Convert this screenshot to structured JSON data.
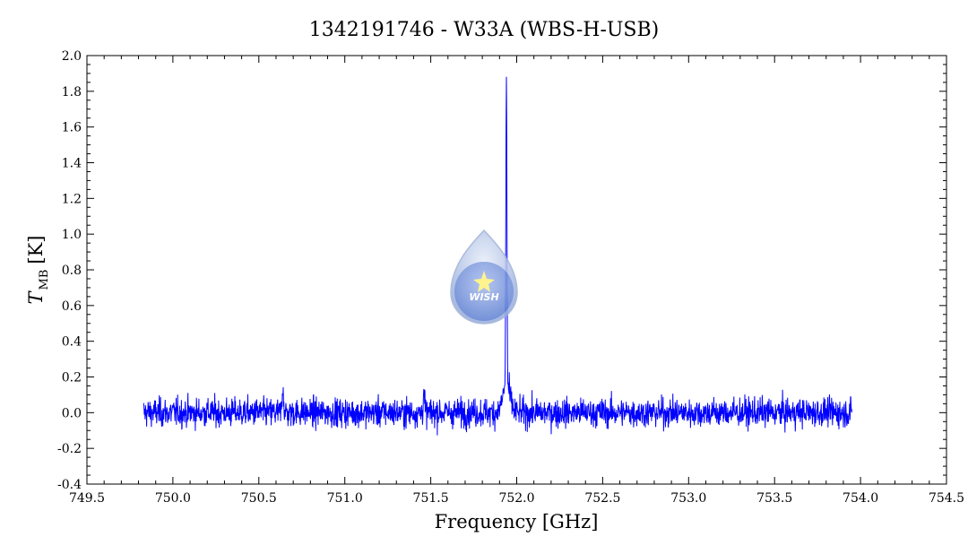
{
  "chart_data": {
    "type": "line",
    "title": "1342191746 - W33A (WBS-H-USB)",
    "xlabel": "Frequency [GHz]",
    "ylabel_main": "T",
    "ylabel_sub": "MB",
    "ylabel_unit": "[K]",
    "xlim": [
      749.5,
      754.5
    ],
    "ylim": [
      -0.4,
      2.0
    ],
    "xticks": [
      "749.5",
      "750.0",
      "750.5",
      "751.0",
      "751.5",
      "752.0",
      "752.5",
      "753.0",
      "753.5",
      "754.0",
      "754.5"
    ],
    "yticks": [
      "-0.4",
      "-0.2",
      "0.0",
      "0.2",
      "0.4",
      "0.6",
      "0.8",
      "1.0",
      "1.2",
      "1.4",
      "1.6",
      "1.8",
      "2.0"
    ],
    "grid": false,
    "series": [
      {
        "color": "#0000ff",
        "x_start": 749.83,
        "x_end": 753.95,
        "baseline_rms": 0.04,
        "features": [
          {
            "x": 751.94,
            "peak": 1.85
          },
          {
            "x": 751.46,
            "peak": 0.2
          },
          {
            "x": 750.64,
            "peak": 0.23
          }
        ]
      }
    ]
  },
  "logo": {
    "text": "WISH"
  }
}
